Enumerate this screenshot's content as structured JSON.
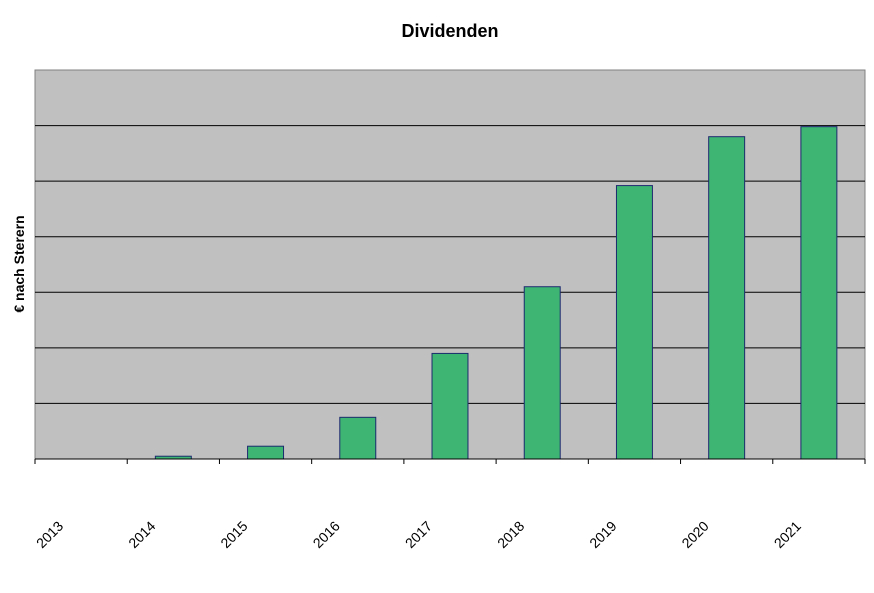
{
  "chart_data": {
    "type": "bar",
    "title": "Dividenden",
    "xlabel": "",
    "ylabel": "€ nach Sterern",
    "categories": [
      "2013",
      "2014",
      "2015",
      "2016",
      "2017",
      "2018",
      "2019",
      "2020",
      "2021"
    ],
    "values": [
      0,
      0.05,
      0.23,
      0.75,
      1.9,
      3.1,
      4.92,
      5.8,
      5.98
    ],
    "ylim": [
      0,
      7
    ],
    "y_tick_labels_shown": false,
    "grid": true,
    "legend": "none",
    "colors": {
      "bar_fill": "#3fb573",
      "bar_stroke": "#1c2a6e",
      "plot_background": "#c0c0c0",
      "gridline": "#000000"
    }
  }
}
